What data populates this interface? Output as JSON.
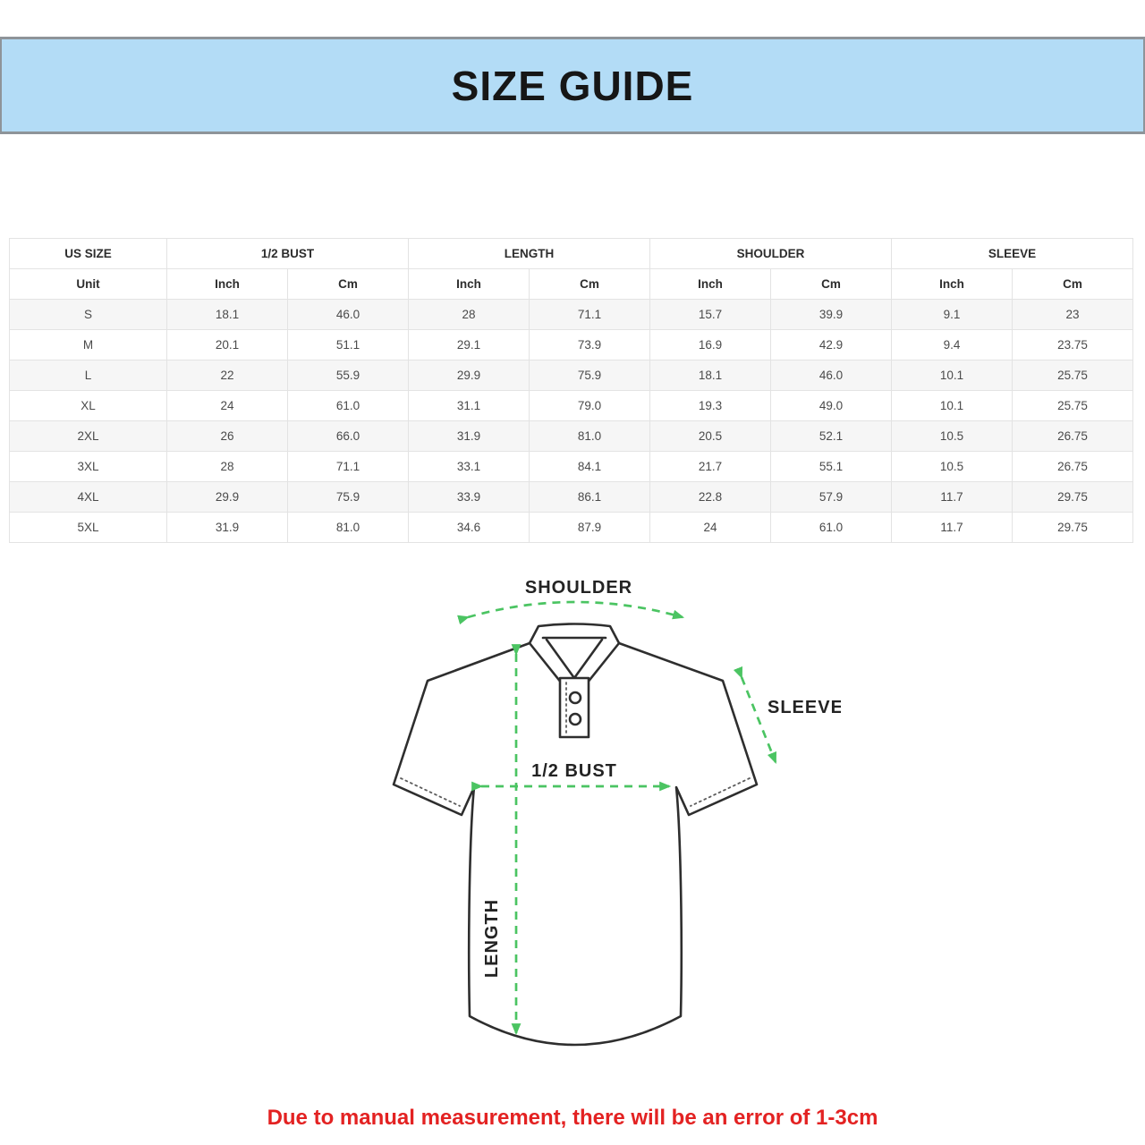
{
  "banner": {
    "title": "SIZE GUIDE",
    "bg_color": "#b3dcf6",
    "border_color": "#8e9499"
  },
  "table": {
    "groups": [
      {
        "label": "US SIZE",
        "colspan": 1
      },
      {
        "label": "1/2 BUST",
        "colspan": 2
      },
      {
        "label": "LENGTH",
        "colspan": 2
      },
      {
        "label": "SHOULDER",
        "colspan": 2
      },
      {
        "label": "SLEEVE",
        "colspan": 2
      }
    ],
    "unit_row": [
      "Unit",
      "Inch",
      "Cm",
      "Inch",
      "Cm",
      "Inch",
      "Cm",
      "Inch",
      "Cm"
    ],
    "rows": [
      [
        "S",
        "18.1",
        "46.0",
        "28",
        "71.1",
        "15.7",
        "39.9",
        "9.1",
        "23"
      ],
      [
        "M",
        "20.1",
        "51.1",
        "29.1",
        "73.9",
        "16.9",
        "42.9",
        "9.4",
        "23.75"
      ],
      [
        "L",
        "22",
        "55.9",
        "29.9",
        "75.9",
        "18.1",
        "46.0",
        "10.1",
        "25.75"
      ],
      [
        "XL",
        "24",
        "61.0",
        "31.1",
        "79.0",
        "19.3",
        "49.0",
        "10.1",
        "25.75"
      ],
      [
        "2XL",
        "26",
        "66.0",
        "31.9",
        "81.0",
        "20.5",
        "52.1",
        "10.5",
        "26.75"
      ],
      [
        "3XL",
        "28",
        "71.1",
        "33.1",
        "84.1",
        "21.7",
        "55.1",
        "10.5",
        "26.75"
      ],
      [
        "4XL",
        "29.9",
        "75.9",
        "33.9",
        "86.1",
        "22.8",
        "57.9",
        "11.7",
        "29.75"
      ],
      [
        "5XL",
        "31.9",
        "81.0",
        "34.6",
        "87.9",
        "24",
        "61.0",
        "11.7",
        "29.75"
      ]
    ]
  },
  "diagram": {
    "labels": {
      "shoulder": "SHOULDER",
      "sleeve": "SLEEVE",
      "half_bust": "1/2 BUST",
      "length": "LENGTH"
    },
    "arrow_color": "#4bc462"
  },
  "note": {
    "text": "Due to manual measurement, there will be an error of 1-3cm",
    "color": "#e32222"
  }
}
